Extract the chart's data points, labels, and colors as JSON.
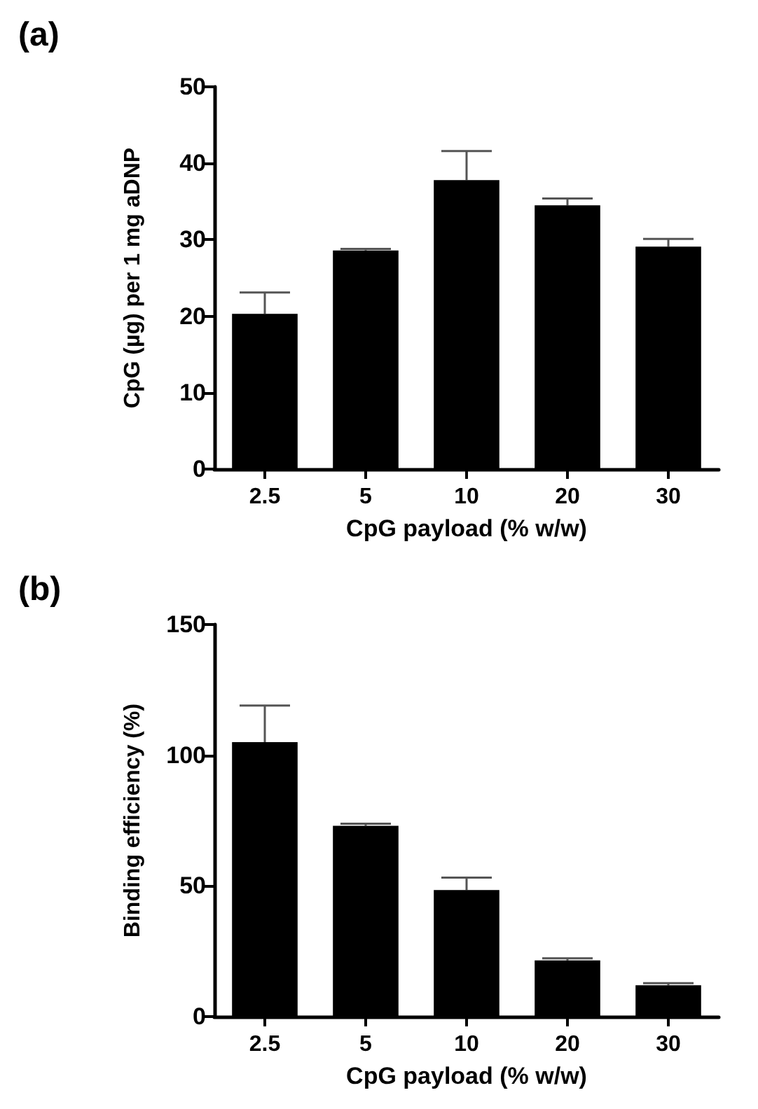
{
  "chart_data": [
    {
      "type": "bar",
      "title": "(a)",
      "xlabel": "CpG payload (% w/w)",
      "ylabel": "CpG (µg) per 1 mg aDNP",
      "categories": [
        "2.5",
        "5",
        "10",
        "20",
        "30"
      ],
      "values": [
        20.3,
        28.6,
        37.8,
        34.5,
        29.1
      ],
      "color": "#000000",
      "errors": [
        [
          20.3,
          23.1
        ],
        [
          28.6,
          28.8
        ],
        [
          37.8,
          41.6
        ],
        [
          34.5,
          35.4
        ],
        [
          29.1,
          30.1
        ]
      ],
      "ylim": [
        0,
        50
      ],
      "yticks": [
        0,
        10,
        20,
        30,
        40,
        50
      ],
      "grid": false
    },
    {
      "type": "bar",
      "title": "(b)",
      "xlabel": "CpG payload (% w/w)",
      "ylabel": "Binding efficiency (%)",
      "categories": [
        "2.5",
        "5",
        "10",
        "20",
        "30"
      ],
      "values": [
        105,
        73,
        48.4,
        21.5,
        12
      ],
      "color": "#000000",
      "errors": [
        [
          105,
          119
        ],
        [
          73,
          73.8
        ],
        [
          48.4,
          53.2
        ],
        [
          21.5,
          22.3
        ],
        [
          12,
          12.8
        ]
      ],
      "ylim": [
        0,
        150
      ],
      "yticks": [
        0,
        50,
        100,
        150
      ],
      "grid": false
    }
  ]
}
